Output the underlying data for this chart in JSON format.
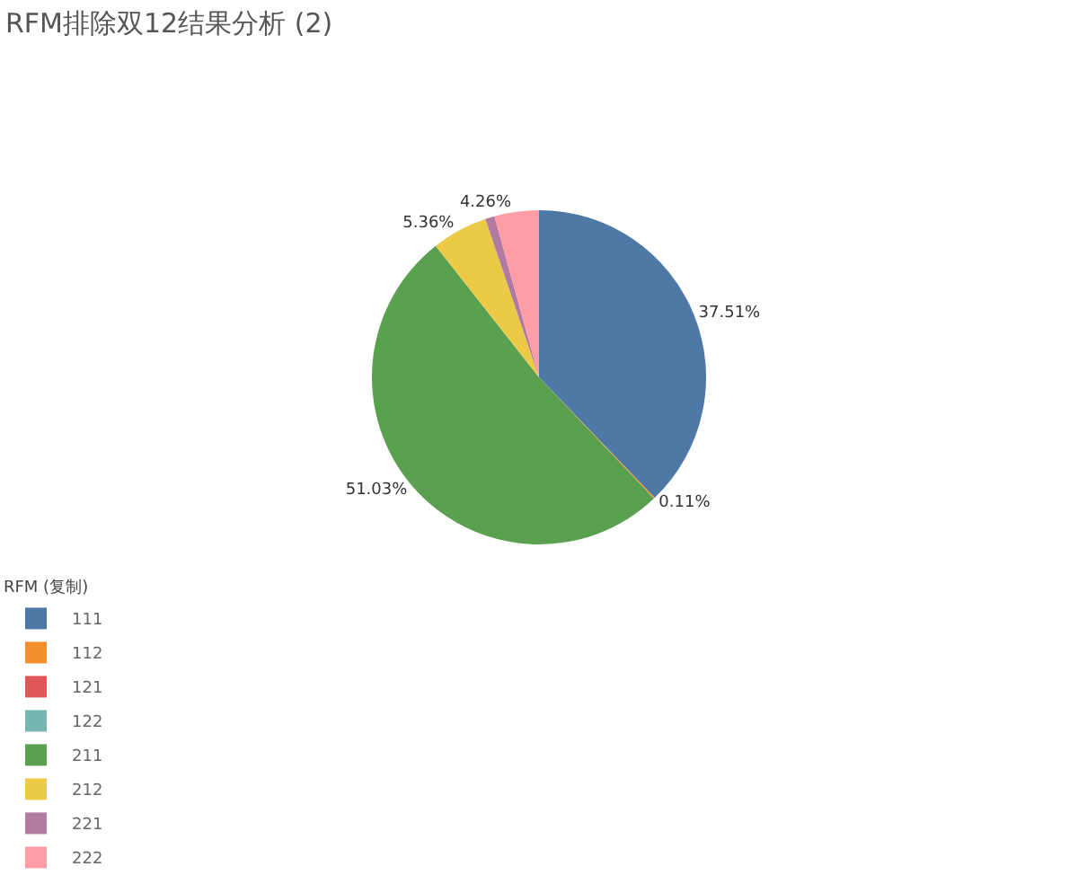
{
  "chart_data": {
    "type": "pie",
    "title": "RFM排除双12结果分析 (2)",
    "legend_title": "RFM (复制)",
    "legend": "bottom left",
    "categories": [
      "111",
      "112",
      "121",
      "122",
      "211",
      "212",
      "221",
      "222"
    ],
    "values": [
      37.51,
      0.11,
      0,
      0,
      51.03,
      5.36,
      0.9,
      4.26
    ],
    "value_labels": [
      "37.51%",
      "0.11%",
      null,
      null,
      "51.03%",
      "5.36%",
      null,
      "4.26%"
    ],
    "colors": [
      "#4e79a7",
      "#f28e2b",
      "#e15759",
      "#76b7b2",
      "#59a14f",
      "#edc948",
      "#b07aa1",
      "#ff9da7"
    ]
  }
}
